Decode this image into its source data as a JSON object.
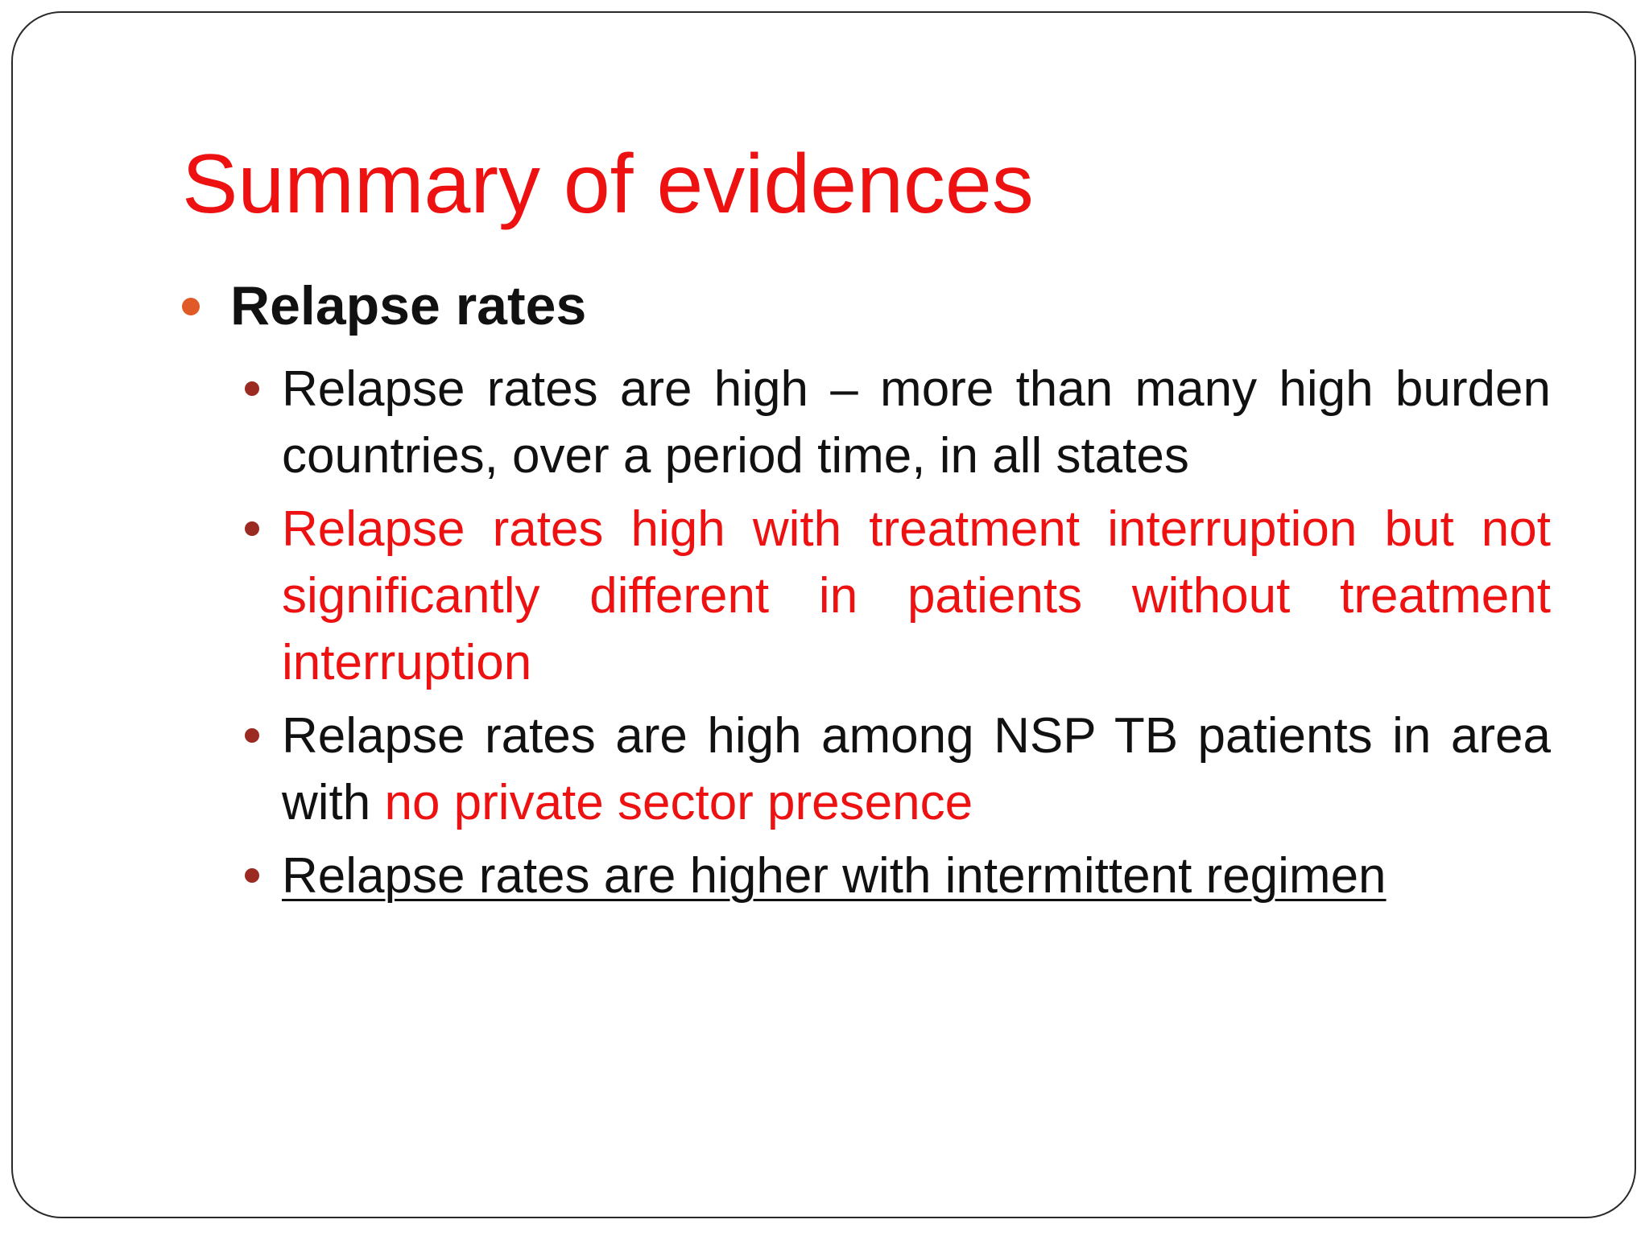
{
  "slide": {
    "title": "Summary of evidences",
    "section": "Relapse rates",
    "points": [
      {
        "text": "Relapse rates are high – more than many high burden countries, over a period time, in all states"
      },
      {
        "text": "Relapse rates high with treatment interruption but not significantly different in patients without treatment interruption"
      },
      {
        "text_before": "Relapse rates are high among NSP TB patients in area with ",
        "text_highlight": "no private sector presence"
      },
      {
        "text": "Relapse rates are higher with intermittent regimen"
      }
    ]
  },
  "colors": {
    "title": "#ee1111",
    "highlight": "#ee1111",
    "level1_bullet": "#e05a28",
    "level2_bullet": "#9b2b22",
    "body_text": "#111111"
  }
}
